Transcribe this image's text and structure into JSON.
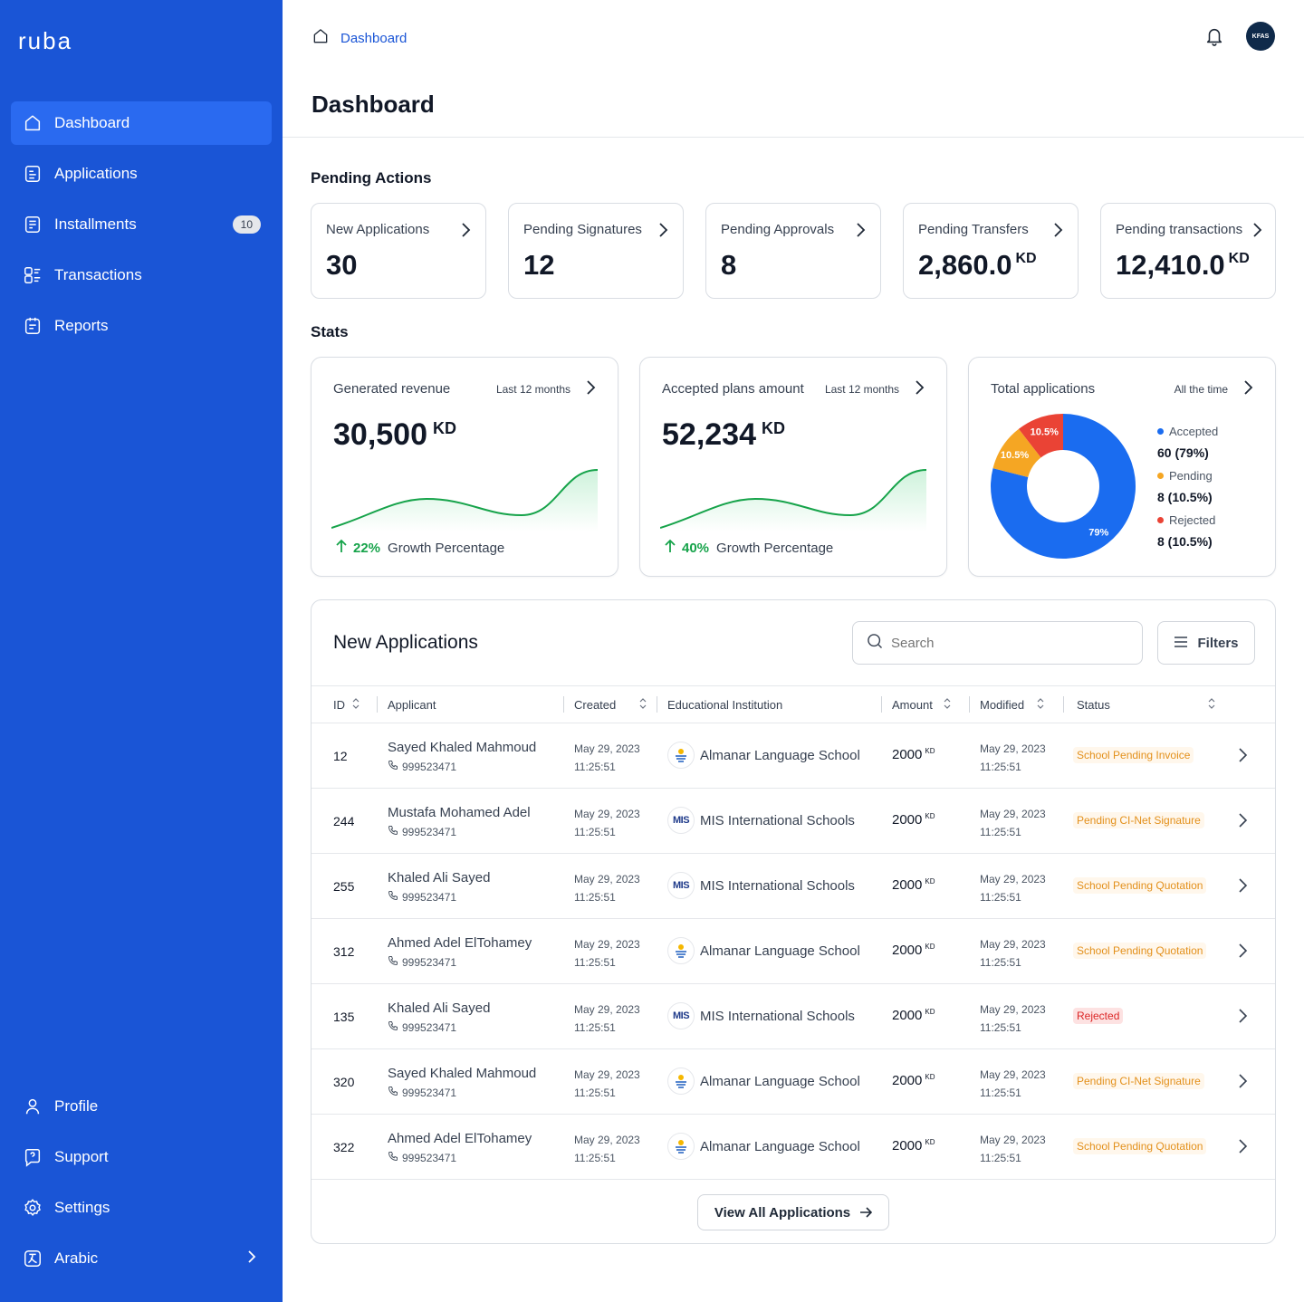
{
  "app": {
    "logo": "ruba"
  },
  "sidebar": {
    "items": [
      {
        "label": "Dashboard",
        "icon": "home-icon",
        "active": true
      },
      {
        "label": "Applications",
        "icon": "applications-icon"
      },
      {
        "label": "Installments",
        "icon": "installments-icon",
        "badge": "10"
      },
      {
        "label": "Transactions",
        "icon": "transactions-icon"
      },
      {
        "label": "Reports",
        "icon": "reports-icon"
      }
    ],
    "bottom": [
      {
        "label": "Profile",
        "icon": "user-icon"
      },
      {
        "label": "Support",
        "icon": "support-icon"
      },
      {
        "label": "Settings",
        "icon": "gear-icon"
      },
      {
        "label": "Arabic",
        "icon": "language-icon"
      }
    ]
  },
  "topbar": {
    "breadcrumb": "Dashboard",
    "avatar_text": "KFAS"
  },
  "page": {
    "title": "Dashboard"
  },
  "pending": {
    "title": "Pending Actions",
    "cards": [
      {
        "label": "New Applications",
        "value": "30",
        "unit": ""
      },
      {
        "label": "Pending Signatures",
        "value": "12",
        "unit": ""
      },
      {
        "label": "Pending Approvals",
        "value": "8",
        "unit": ""
      },
      {
        "label": "Pending Transfers",
        "value": "2,860.0",
        "unit": "KD"
      },
      {
        "label": "Pending transactions",
        "value": "12,410.0",
        "unit": "KD"
      }
    ]
  },
  "stats": {
    "title": "Stats",
    "revenue": {
      "label": "Generated revenue",
      "period": "Last 12 months",
      "value": "30,500",
      "unit": "KD",
      "growth": "22%",
      "growth_label": "Growth Percentage"
    },
    "accepted": {
      "label": "Accepted plans amount",
      "period": "Last 12 months",
      "value": "52,234",
      "unit": "KD",
      "growth": "40%",
      "growth_label": "Growth Percentage"
    },
    "total": {
      "label": "Total applications",
      "period": "All the time",
      "legend": [
        {
          "name": "Accepted",
          "value": "60 (79%)",
          "color": "#1a6cf0"
        },
        {
          "name": "Pending",
          "value": "8 (10.5%)",
          "color": "#f5a623"
        },
        {
          "name": "Rejected",
          "value": "8 (10.5%)",
          "color": "#ea4335"
        }
      ]
    }
  },
  "chart_data": {
    "type": "pie",
    "categories": [
      "Accepted",
      "Pending",
      "Rejected"
    ],
    "values": [
      79,
      10.5,
      10.5
    ],
    "data_labels": [
      "79%",
      "10.5%",
      "10.5%"
    ],
    "colors": [
      "#1a6cf0",
      "#f5a623",
      "#ea4335"
    ]
  },
  "table": {
    "title": "New Applications",
    "search_placeholder": "Search",
    "filters_label": "Filters",
    "columns": [
      "ID",
      "Applicant",
      "Created",
      "Educational Institution",
      "Amount",
      "Modified",
      "Status"
    ],
    "rows": [
      {
        "id": "12",
        "name": "Sayed Khaled Mahmoud",
        "phone": "999523471",
        "created_date": "May 29, 2023",
        "created_time": "11:25:51",
        "institution": "Almanar Language School",
        "logo": "almanar",
        "amount": "2000",
        "unit": "KD",
        "modified_date": "May 29, 2023",
        "modified_time": "11:25:51",
        "status": "School Pending Invoice",
        "status_type": "warn"
      },
      {
        "id": "244",
        "name": "Mustafa Mohamed Adel",
        "phone": "999523471",
        "created_date": "May 29, 2023",
        "created_time": "11:25:51",
        "institution": "MIS International Schools",
        "logo": "mis",
        "amount": "2000",
        "unit": "KD",
        "modified_date": "May 29, 2023",
        "modified_time": "11:25:51",
        "status": "Pending CI-Net Signature",
        "status_type": "warn"
      },
      {
        "id": "255",
        "name": "Khaled Ali Sayed",
        "phone": "999523471",
        "created_date": "May 29, 2023",
        "created_time": "11:25:51",
        "institution": "MIS International Schools",
        "logo": "mis",
        "amount": "2000",
        "unit": "KD",
        "modified_date": "May 29, 2023",
        "modified_time": "11:25:51",
        "status": "School Pending Quotation",
        "status_type": "warn"
      },
      {
        "id": "312",
        "name": "Ahmed Adel ElTohamey",
        "phone": "999523471",
        "created_date": "May 29, 2023",
        "created_time": "11:25:51",
        "institution": "Almanar Language School",
        "logo": "almanar",
        "amount": "2000",
        "unit": "KD",
        "modified_date": "May 29, 2023",
        "modified_time": "11:25:51",
        "status": "School Pending Quotation",
        "status_type": "warn"
      },
      {
        "id": "135",
        "name": "Khaled Ali Sayed",
        "phone": "999523471",
        "created_date": "May 29, 2023",
        "created_time": "11:25:51",
        "institution": "MIS International Schools",
        "logo": "mis",
        "amount": "2000",
        "unit": "KD",
        "modified_date": "May 29, 2023",
        "modified_time": "11:25:51",
        "status": "Rejected",
        "status_type": "rej"
      },
      {
        "id": "320",
        "name": "Sayed Khaled Mahmoud",
        "phone": "999523471",
        "created_date": "May 29, 2023",
        "created_time": "11:25:51",
        "institution": "Almanar Language School",
        "logo": "almanar",
        "amount": "2000",
        "unit": "KD",
        "modified_date": "May 29, 2023",
        "modified_time": "11:25:51",
        "status": "Pending CI-Net Signature",
        "status_type": "warn"
      },
      {
        "id": "322",
        "name": "Ahmed Adel ElTohamey",
        "phone": "999523471",
        "created_date": "May 29, 2023",
        "created_time": "11:25:51",
        "institution": "Almanar Language School",
        "logo": "almanar",
        "amount": "2000",
        "unit": "KD",
        "modified_date": "May 29, 2023",
        "modified_time": "11:25:51",
        "status": "School Pending Quotation",
        "status_type": "warn"
      }
    ],
    "view_all": "View All Applications"
  }
}
